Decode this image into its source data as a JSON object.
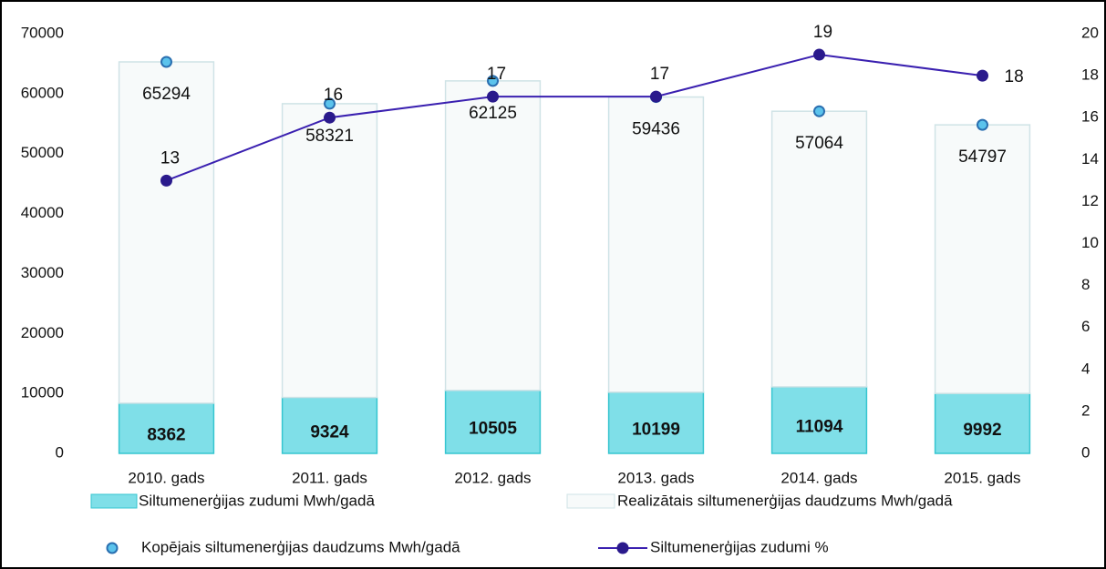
{
  "chart_data": {
    "type": "bar",
    "categories": [
      "2010. gads",
      "2011. gads",
      "2012. gads",
      "2013. gads",
      "2014. gads",
      "2015. gads"
    ],
    "series": [
      {
        "name": "Siltumenerģijas zudumi Mwh/gadā",
        "type": "bar",
        "color": "#7fdfe8",
        "values": [
          8362,
          9324,
          10505,
          10199,
          11094,
          9992
        ]
      },
      {
        "name": "Realizātais siltumenerģijas daudzums Mwh/gadā",
        "type": "bar",
        "color": "#f7fafa",
        "values": [
          56932,
          48997,
          51620,
          49237,
          45970,
          44805
        ]
      },
      {
        "name": "Kopējais siltumenerģijas daudzums Mwh/gadā",
        "type": "scatter",
        "color": "#5bc3ec",
        "values": [
          65294,
          58321,
          62125,
          59436,
          57064,
          54797
        ]
      },
      {
        "name": "Siltumenerģijas zudumi %",
        "type": "line",
        "axis": "y2",
        "color": "#3a20b0",
        "values": [
          13,
          16,
          17,
          17,
          19,
          18
        ]
      }
    ],
    "ylim": [
      0,
      70000
    ],
    "yticks": [
      0,
      10000,
      20000,
      30000,
      40000,
      50000,
      60000,
      70000
    ],
    "y2lim": [
      0,
      20
    ],
    "y2ticks": [
      0,
      2,
      4,
      6,
      8,
      10,
      12,
      14,
      16,
      18,
      20
    ],
    "grid": false
  }
}
